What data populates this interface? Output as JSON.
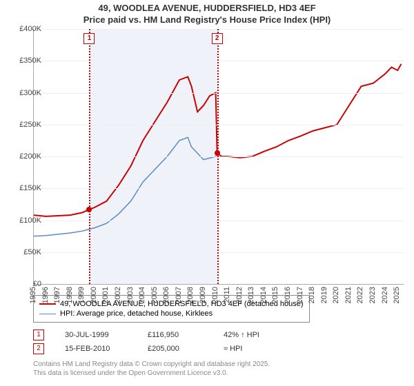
{
  "title_line1": "49, WOODLEA AVENUE, HUDDERSFIELD, HD3 4EF",
  "title_line2": "Price paid vs. HM Land Registry's House Price Index (HPI)",
  "chart": {
    "type": "line",
    "x_years": [
      1995,
      1996,
      1997,
      1998,
      1999,
      2000,
      2001,
      2002,
      2003,
      2004,
      2005,
      2006,
      2007,
      2008,
      2009,
      2010,
      2011,
      2012,
      2013,
      2014,
      2015,
      2016,
      2017,
      2018,
      2019,
      2020,
      2021,
      2022,
      2023,
      2024,
      2025
    ],
    "xlim": [
      1995,
      2025.5
    ],
    "ylim": [
      0,
      400000
    ],
    "ytick_step": 50000,
    "yticks_fmt": [
      "£0",
      "£50K",
      "£100K",
      "£150K",
      "£200K",
      "£250K",
      "£300K",
      "£350K",
      "£400K"
    ],
    "grid_color": "#eeeeee",
    "background_shade_color": "rgba(120,150,200,0.12)",
    "shade_ranges": [
      [
        1999.58,
        2010.12
      ]
    ],
    "series": [
      {
        "name": "49, WOODLEA AVENUE, HUDDERSFIELD, HD3 4EF (detached house)",
        "color": "#cc0000",
        "width": 2,
        "points": [
          [
            1995,
            108000
          ],
          [
            1996,
            106000
          ],
          [
            1997,
            107000
          ],
          [
            1998,
            108000
          ],
          [
            1999,
            112000
          ],
          [
            1999.58,
            116950
          ],
          [
            2000,
            120000
          ],
          [
            2001,
            130000
          ],
          [
            2002,
            155000
          ],
          [
            2003,
            185000
          ],
          [
            2004,
            225000
          ],
          [
            2005,
            255000
          ],
          [
            2006,
            285000
          ],
          [
            2007,
            320000
          ],
          [
            2007.7,
            325000
          ],
          [
            2008,
            310000
          ],
          [
            2008.5,
            270000
          ],
          [
            2009,
            280000
          ],
          [
            2009.5,
            295000
          ],
          [
            2010,
            300000
          ],
          [
            2010.12,
            205000
          ],
          [
            2010.5,
            200000
          ],
          [
            2011,
            200000
          ],
          [
            2012,
            198000
          ],
          [
            2013,
            200000
          ],
          [
            2014,
            208000
          ],
          [
            2015,
            215000
          ],
          [
            2016,
            225000
          ],
          [
            2017,
            232000
          ],
          [
            2018,
            240000
          ],
          [
            2019,
            245000
          ],
          [
            2020,
            250000
          ],
          [
            2021,
            280000
          ],
          [
            2022,
            310000
          ],
          [
            2023,
            315000
          ],
          [
            2024,
            330000
          ],
          [
            2024.5,
            340000
          ],
          [
            2025,
            335000
          ],
          [
            2025.3,
            345000
          ]
        ]
      },
      {
        "name": "HPI: Average price, detached house, Kirklees",
        "color": "#5a8ac6",
        "width": 1.5,
        "points": [
          [
            1995,
            75000
          ],
          [
            1996,
            76000
          ],
          [
            1997,
            78000
          ],
          [
            1998,
            80000
          ],
          [
            1999,
            83000
          ],
          [
            2000,
            88000
          ],
          [
            2001,
            95000
          ],
          [
            2002,
            110000
          ],
          [
            2003,
            130000
          ],
          [
            2004,
            160000
          ],
          [
            2005,
            180000
          ],
          [
            2006,
            200000
          ],
          [
            2007,
            225000
          ],
          [
            2007.7,
            230000
          ],
          [
            2008,
            215000
          ],
          [
            2009,
            195000
          ],
          [
            2010,
            200000
          ],
          [
            2010.12,
            205000
          ]
        ]
      }
    ],
    "sale_markers": [
      {
        "num": "1",
        "year": 1999.58,
        "price": 116950,
        "date": "30-JUL-1999",
        "price_fmt": "£116,950",
        "note": "42% ↑ HPI"
      },
      {
        "num": "2",
        "year": 2010.12,
        "price": 205000,
        "date": "15-FEB-2010",
        "price_fmt": "£205,000",
        "note": "≈ HPI"
      }
    ],
    "sale_dot_color": "#cc0000"
  },
  "footer_line1": "Contains HM Land Registry data © Crown copyright and database right 2025.",
  "footer_line2": "This data is licensed under the Open Government Licence v3.0."
}
